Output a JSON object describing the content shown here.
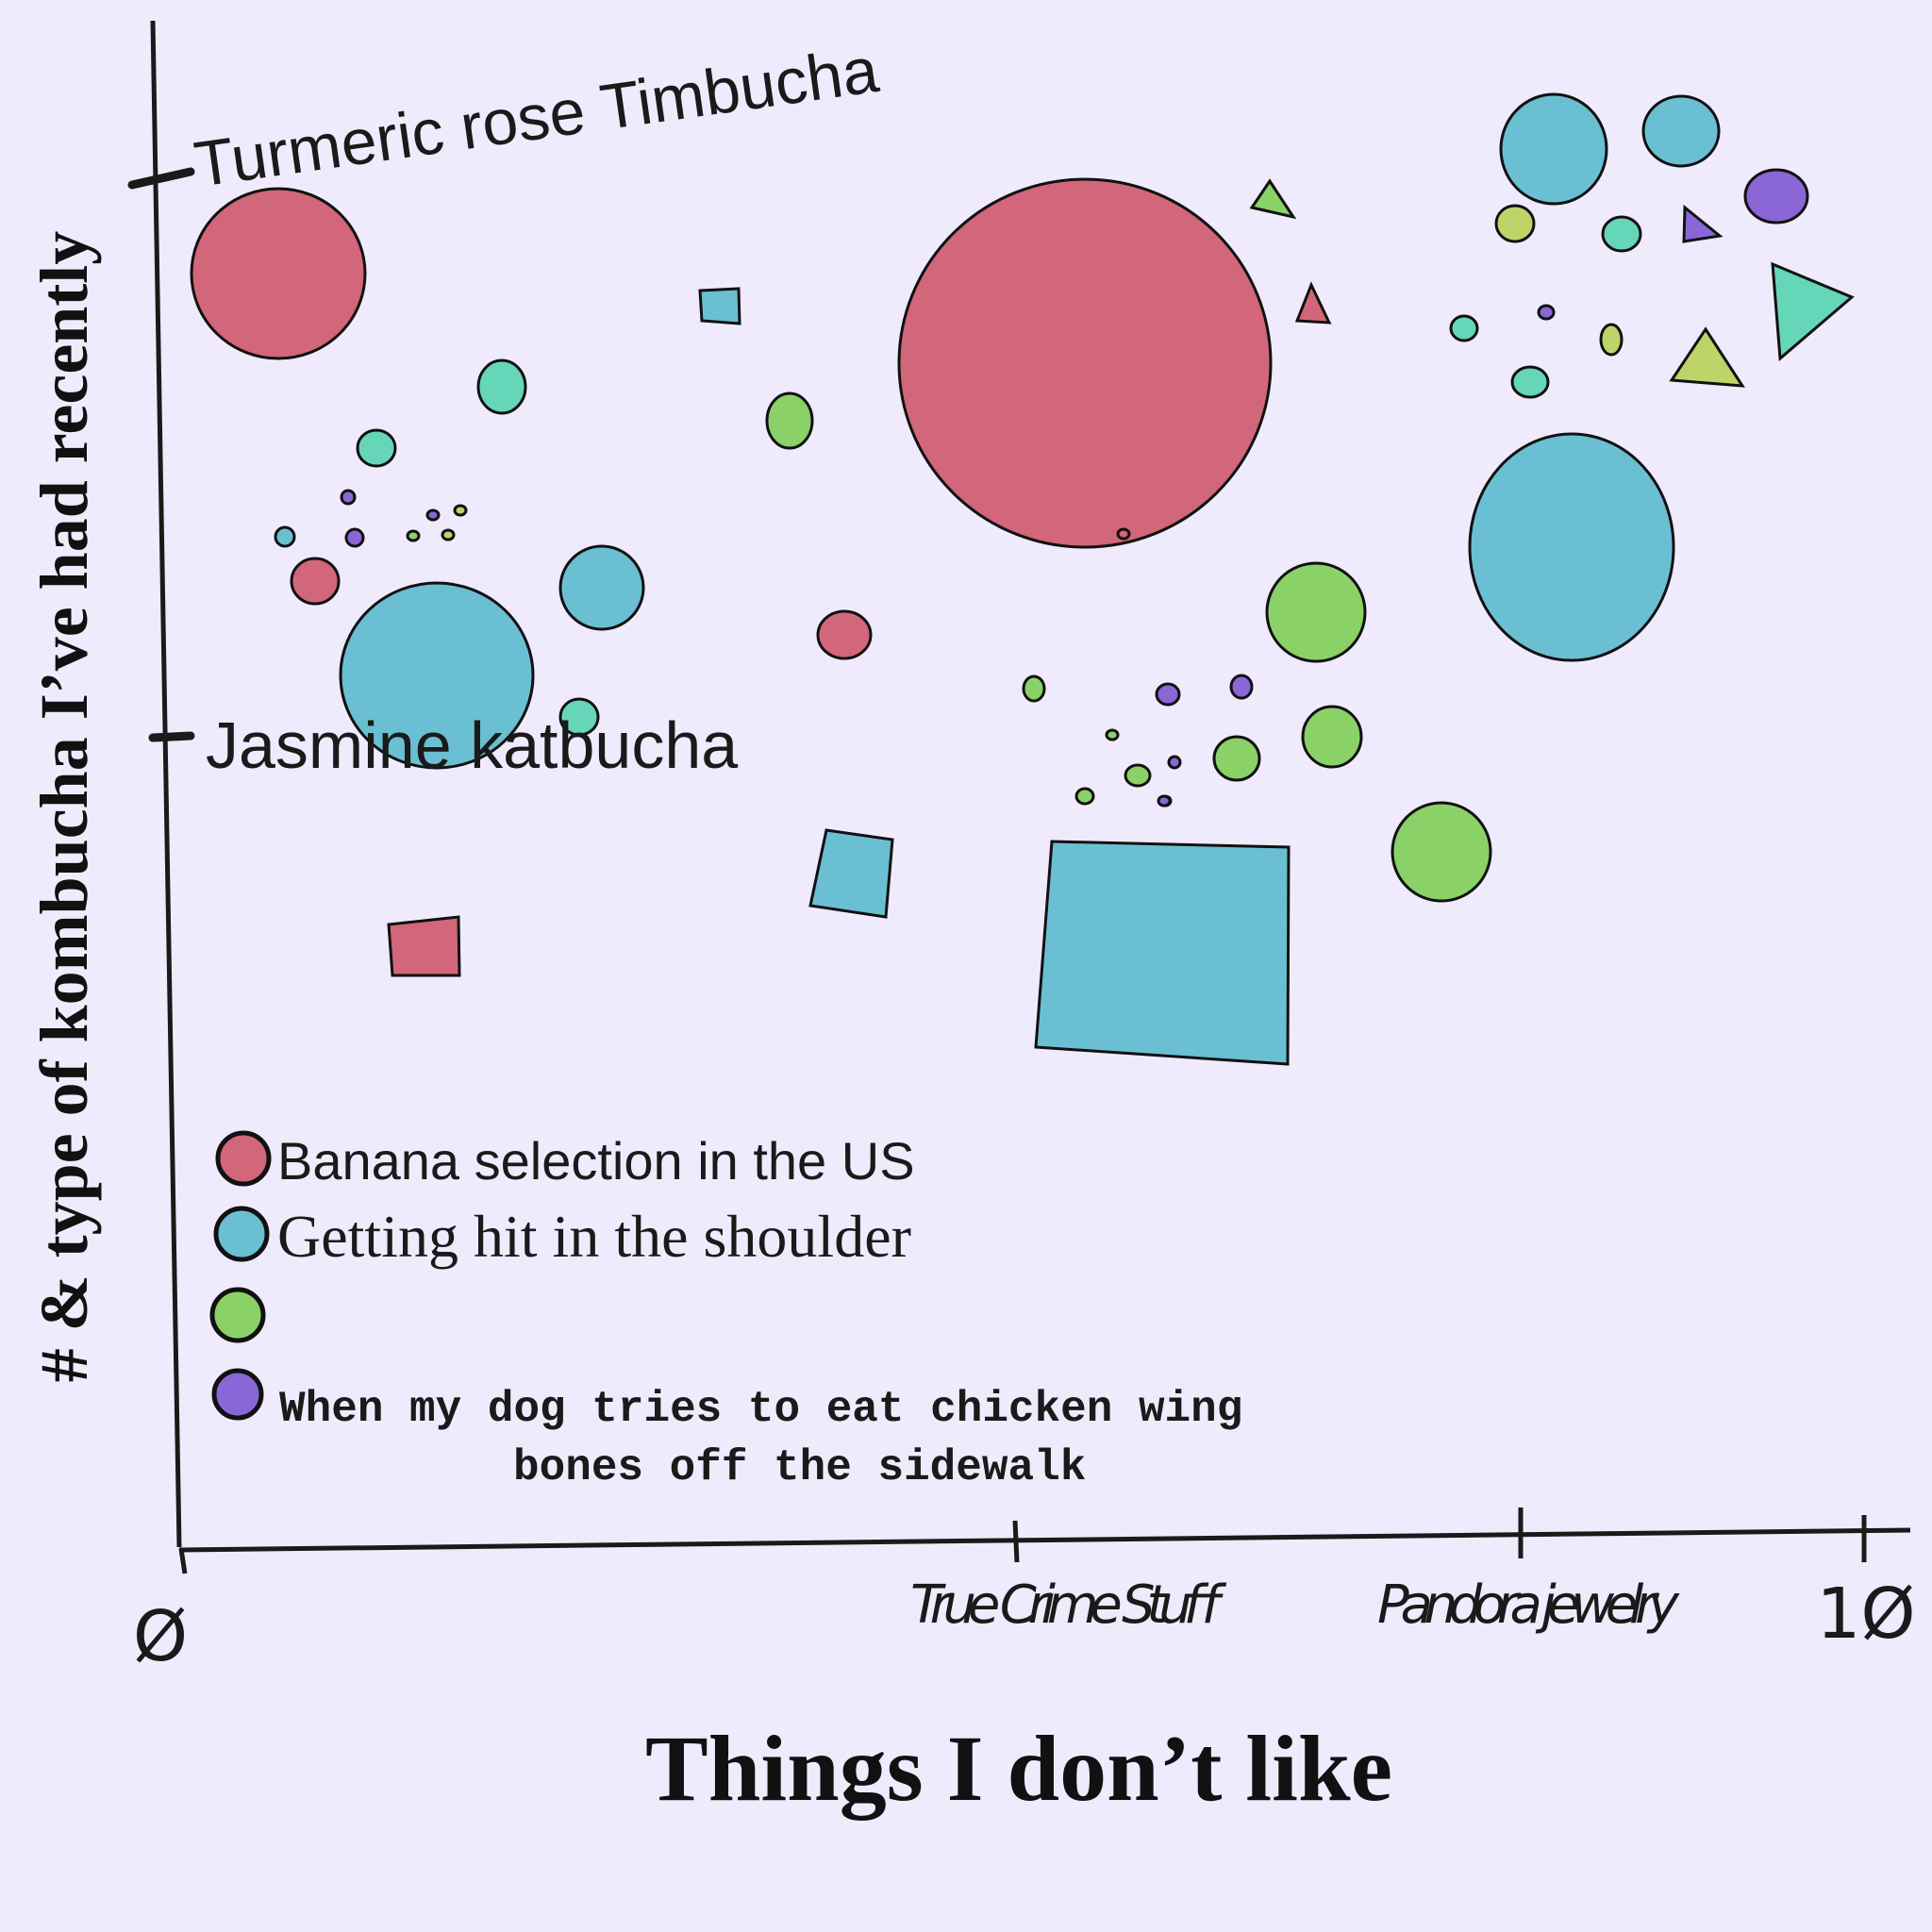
{
  "chart_data": {
    "type": "scatter",
    "xlabel": "Things I don’t like",
    "ylabel": "# & type of kombucha I’ve had recently",
    "xlim": [
      0,
      10
    ],
    "x_ticks": [
      {
        "value": 0,
        "label": "Ø"
      },
      {
        "value": 5,
        "label": "True Crime Stuff"
      },
      {
        "value": 8,
        "label": "Pandora jewelry"
      },
      {
        "value": 10,
        "label": "1Ø"
      }
    ],
    "y_ticks": [
      {
        "label": "Jasmine katbucha"
      },
      {
        "label": "Turmeric rose Timbucha"
      }
    ],
    "legend": {
      "placement": "bottom-left",
      "entries": [
        {
          "label": "Banana selection in the US",
          "color": "#d2667a",
          "font": "sans"
        },
        {
          "label": "Getting hit in the shoulder",
          "color": "#6bbfd3",
          "font": "serif"
        },
        {
          "label": "",
          "color": "#8ad268",
          "font": "sans"
        },
        {
          "label": "When my dog tries to eat chicken wing bones off the sidewalk",
          "color": "#8a66d6",
          "font": "mono"
        }
      ]
    },
    "colors": {
      "red": "#d2667a",
      "blue": "#6bbfd3",
      "green": "#8ad268",
      "purple": "#8a66d6",
      "teal": "#66d6b8",
      "lime": "#bfd468",
      "background": "#efebfd"
    }
  }
}
